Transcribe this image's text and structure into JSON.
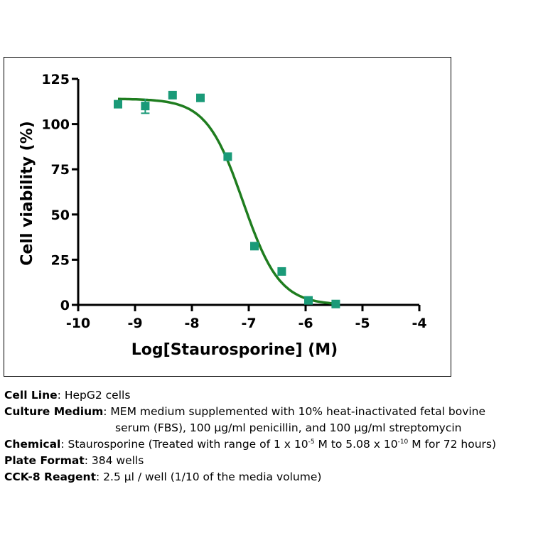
{
  "chart_data": {
    "type": "scatter",
    "xlabel": "Log[Staurosporine] (M)",
    "ylabel": "Cell viability (%)",
    "xlim": [
      -10,
      -4
    ],
    "ylim": [
      0,
      125
    ],
    "xticks": [
      -10,
      -9,
      -8,
      -7,
      -6,
      -5,
      -4
    ],
    "yticks": [
      0,
      25,
      50,
      75,
      100,
      125
    ],
    "grid": false,
    "colors": {
      "points": "#1a9a78",
      "curve": "#1f7d1f",
      "axes": "#000000"
    },
    "points": [
      {
        "x": -9.3,
        "y": 111
      },
      {
        "x": -8.82,
        "y": 110,
        "err": 4
      },
      {
        "x": -8.34,
        "y": 116
      },
      {
        "x": -7.85,
        "y": 114.5
      },
      {
        "x": -7.37,
        "y": 82
      },
      {
        "x": -6.9,
        "y": 32.5
      },
      {
        "x": -6.42,
        "y": 18.5
      },
      {
        "x": -5.95,
        "y": 2.5
      },
      {
        "x": -5.47,
        "y": 0.5
      }
    ],
    "fit": {
      "model": "sigmoidal dose-response",
      "top": 114,
      "bottom": 0,
      "log_ic50": -7.1,
      "hill_slope": -1.35
    }
  },
  "info": {
    "cell_line": {
      "label": "Cell Line",
      "value": "HepG2 cells"
    },
    "culture_medium": {
      "label": "Culture Medium",
      "line1": "MEM medium supplemented with 10% heat-inactivated fetal bovine",
      "line2": "serum (FBS), 100 µg/ml penicillin, and 100 µg/ml streptomycin"
    },
    "chemical": {
      "label": "Chemical",
      "pre": "Staurosporine (Treated with range of 1 x 10",
      "exp1": "-5",
      "mid": " M to 5.08 x 10",
      "exp2": "-10",
      "post": " M for 72 hours)"
    },
    "plate_format": {
      "label": "Plate Format",
      "value": "384 wells"
    },
    "cck8": {
      "label": "CCK-8 Reagent",
      "value": "2.5 µl / well (1/10 of the media volume)"
    }
  }
}
